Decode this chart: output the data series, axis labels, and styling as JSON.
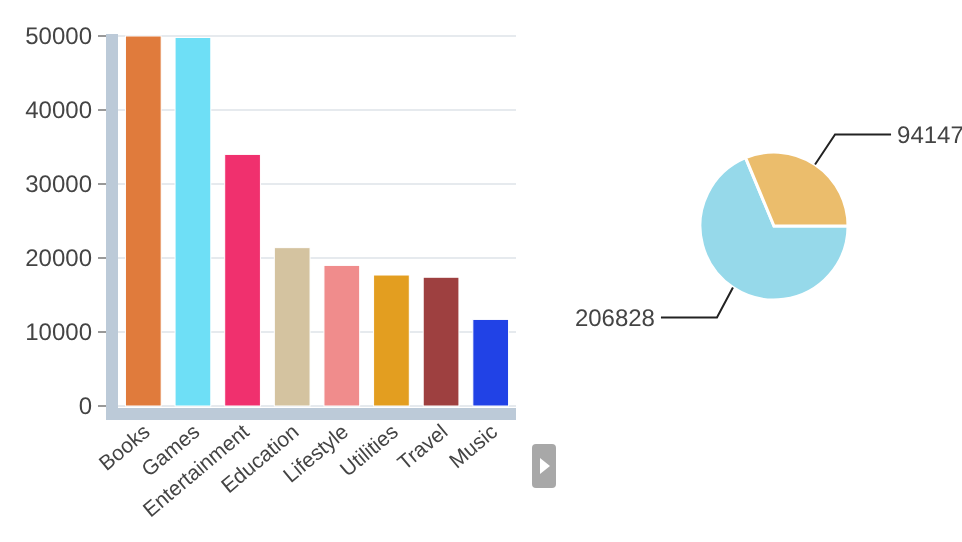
{
  "chart_data": [
    {
      "type": "bar",
      "categories": [
        "Books",
        "Games",
        "Entertainment",
        "Education",
        "Lifestyle",
        "Utilities",
        "Travel",
        "Music"
      ],
      "values": [
        50000,
        49800,
        34000,
        21400,
        19000,
        17700,
        17400,
        11700
      ],
      "colors": [
        "#e07b3c",
        "#6edff6",
        "#f0306e",
        "#d4c3a0",
        "#f08c8c",
        "#e39e20",
        "#9e4040",
        "#2142e6"
      ],
      "ylim": [
        0,
        50000
      ],
      "yticks": [
        0,
        10000,
        20000,
        30000,
        40000,
        50000
      ],
      "grid": "y"
    },
    {
      "type": "pie",
      "categories": [
        null,
        null
      ],
      "values": [
        206828,
        94147
      ],
      "colors": [
        "#96d9ea",
        "#ebbd6c"
      ],
      "data_labels": true
    }
  ]
}
